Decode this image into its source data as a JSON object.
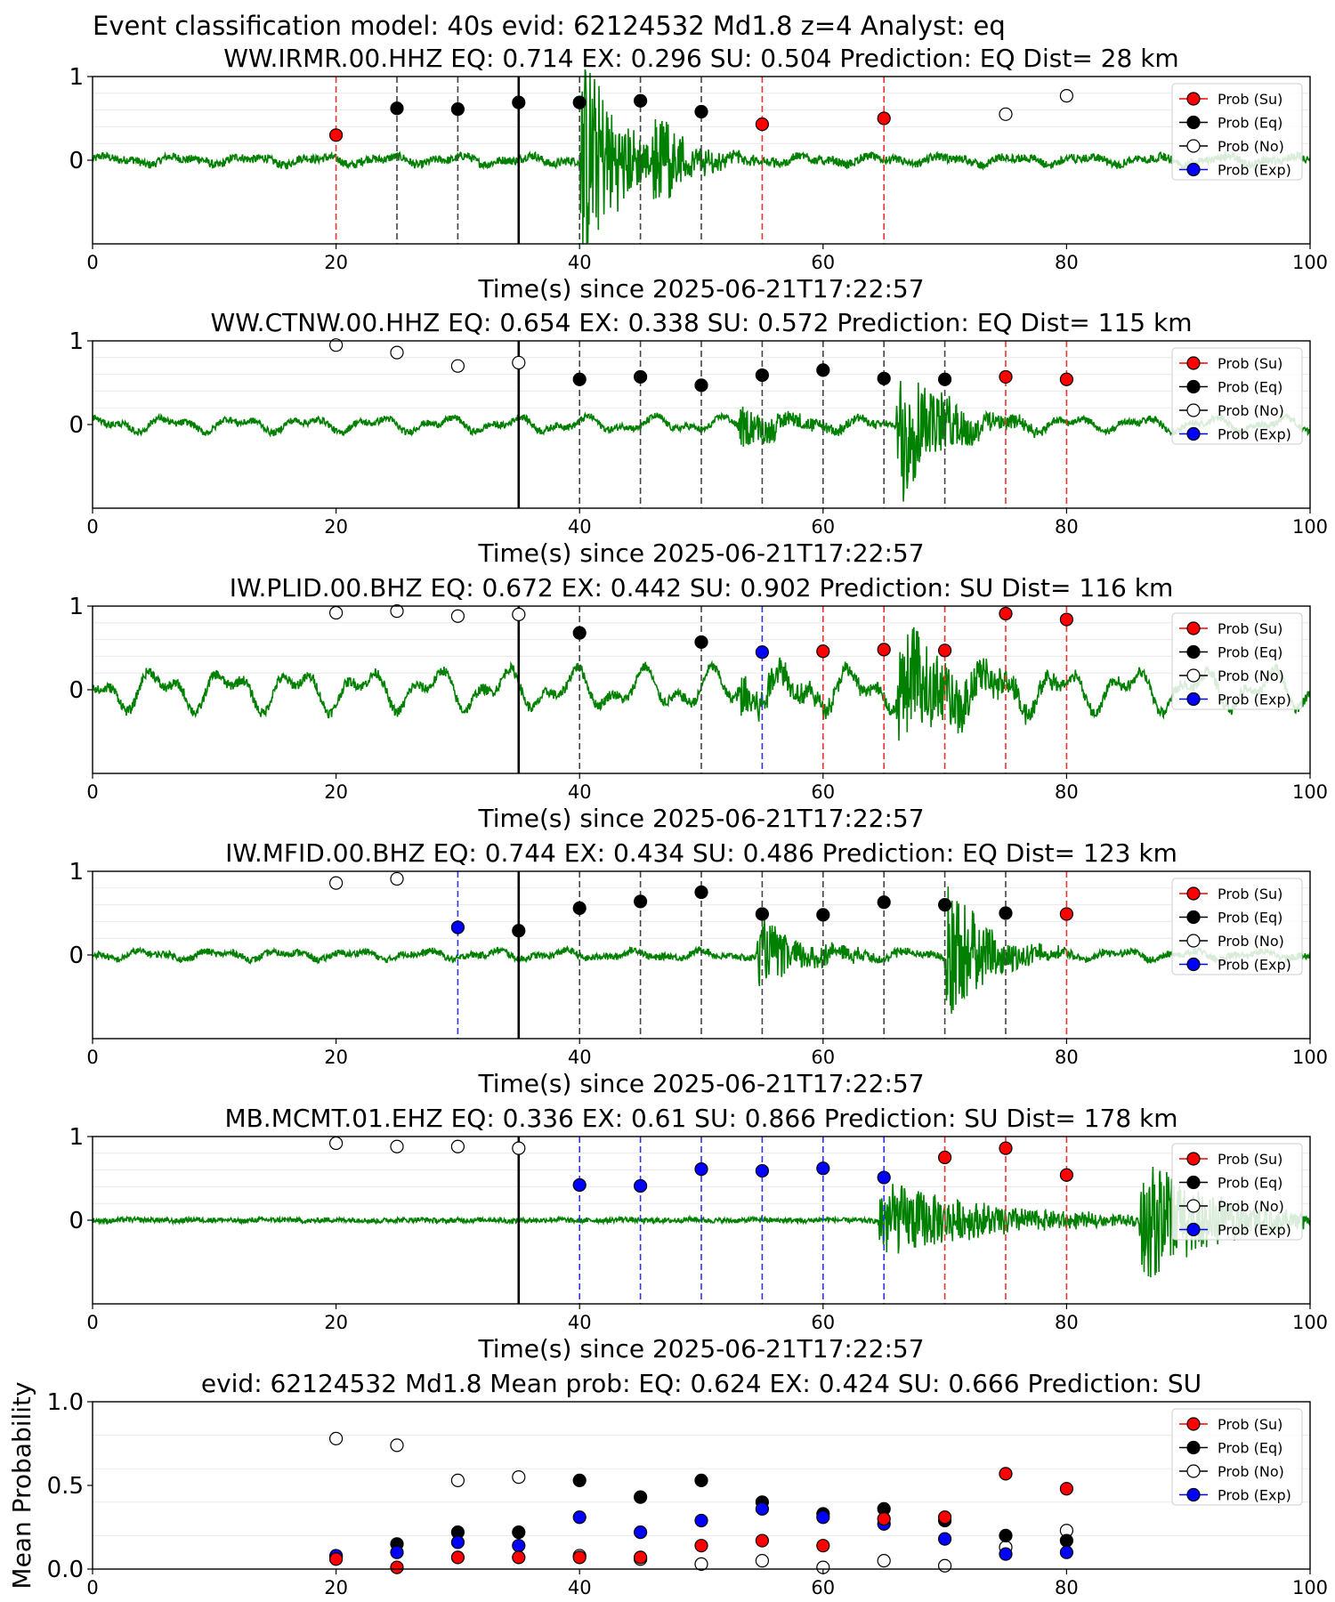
{
  "figure_title": "Event classification model: 40s evid: 62124532 Md1.8 z=4 Analyst: eq",
  "colors": {
    "su": "#ff0000",
    "eq": "#000000",
    "no": "#ffffff",
    "exp": "#0000ff",
    "waveform": "#008000",
    "vline_eq": "#444444",
    "vline_su": "#ee3333",
    "vline_exp": "#3333ee",
    "origin_line": "#000000"
  },
  "legend": [
    "Prob (Su)",
    "Prob (Eq)",
    "Prob (No)",
    "Prob (Exp)"
  ],
  "chart_data": [
    {
      "type": "scatter",
      "title": "WW.IRMR.00.HHZ   EQ: 0.714  EX: 0.296  SU: 0.504   Prediction: EQ    Dist= 28 km",
      "xlabel": "Time(s) since 2025-06-21T17:22:57",
      "xlim": [
        0,
        100
      ],
      "xticks": [
        "0",
        "20",
        "40",
        "60",
        "80",
        "100"
      ],
      "yticks": [
        "1",
        "0"
      ],
      "origin_time": 35,
      "waveform": {
        "bursts": [
          {
            "t": 40,
            "amp": 1.5,
            "dur": 7
          },
          {
            "t": 46,
            "amp": 0.6,
            "dur": 6
          }
        ],
        "noise": 0.05,
        "wave": 0.06
      },
      "points": [
        {
          "x": 20,
          "y": 0.3,
          "cls": "su"
        },
        {
          "x": 25,
          "y": 0.62,
          "cls": "eq"
        },
        {
          "x": 30,
          "y": 0.61,
          "cls": "eq"
        },
        {
          "x": 35,
          "y": 0.69,
          "cls": "eq"
        },
        {
          "x": 40,
          "y": 0.69,
          "cls": "eq"
        },
        {
          "x": 45,
          "y": 0.71,
          "cls": "eq"
        },
        {
          "x": 50,
          "y": 0.58,
          "cls": "eq"
        },
        {
          "x": 55,
          "y": 0.43,
          "cls": "su"
        },
        {
          "x": 65,
          "y": 0.5,
          "cls": "su"
        },
        {
          "x": 75,
          "y": 0.55,
          "cls": "no"
        },
        {
          "x": 80,
          "y": 0.77,
          "cls": "no"
        }
      ]
    },
    {
      "type": "scatter",
      "title": "WW.CTNW.00.HHZ   EQ: 0.654  EX: 0.338  SU: 0.572   Prediction: EQ    Dist= 115 km",
      "xlabel": "Time(s) since 2025-06-21T17:22:57",
      "xlim": [
        0,
        100
      ],
      "xticks": [
        "0",
        "20",
        "40",
        "60",
        "80",
        "100"
      ],
      "yticks": [
        "1",
        "0"
      ],
      "origin_time": 35,
      "waveform": {
        "bursts": [
          {
            "t": 53,
            "amp": 0.25,
            "dur": 10
          },
          {
            "t": 66,
            "amp": 1.0,
            "dur": 8
          }
        ],
        "noise": 0.04,
        "wave": 0.1
      },
      "points": [
        {
          "x": 20,
          "y": 0.95,
          "cls": "no"
        },
        {
          "x": 25,
          "y": 0.86,
          "cls": "no"
        },
        {
          "x": 30,
          "y": 0.7,
          "cls": "no"
        },
        {
          "x": 35,
          "y": 0.74,
          "cls": "no"
        },
        {
          "x": 40,
          "y": 0.54,
          "cls": "eq"
        },
        {
          "x": 45,
          "y": 0.57,
          "cls": "eq"
        },
        {
          "x": 50,
          "y": 0.47,
          "cls": "eq"
        },
        {
          "x": 55,
          "y": 0.59,
          "cls": "eq"
        },
        {
          "x": 60,
          "y": 0.65,
          "cls": "eq"
        },
        {
          "x": 65,
          "y": 0.55,
          "cls": "eq"
        },
        {
          "x": 70,
          "y": 0.54,
          "cls": "eq"
        },
        {
          "x": 75,
          "y": 0.57,
          "cls": "su"
        },
        {
          "x": 80,
          "y": 0.54,
          "cls": "su"
        }
      ]
    },
    {
      "type": "scatter",
      "title": "IW.PLID.00.BHZ   EQ: 0.672  EX: 0.442  SU: 0.902   Prediction: SU    Dist= 116 km",
      "xlabel": "Time(s) since 2025-06-21T17:22:57",
      "xlim": [
        0,
        100
      ],
      "xticks": [
        "0",
        "20",
        "40",
        "60",
        "80",
        "100"
      ],
      "yticks": [
        "1",
        "0"
      ],
      "origin_time": 35,
      "waveform": {
        "bursts": [
          {
            "t": 53,
            "amp": 0.3,
            "dur": 12
          },
          {
            "t": 66,
            "amp": 0.8,
            "dur": 12
          }
        ],
        "noise": 0.06,
        "wave": 0.28
      },
      "points": [
        {
          "x": 20,
          "y": 0.92,
          "cls": "no"
        },
        {
          "x": 25,
          "y": 0.94,
          "cls": "no"
        },
        {
          "x": 30,
          "y": 0.88,
          "cls": "no"
        },
        {
          "x": 35,
          "y": 0.9,
          "cls": "no"
        },
        {
          "x": 40,
          "y": 0.68,
          "cls": "eq"
        },
        {
          "x": 50,
          "y": 0.57,
          "cls": "eq"
        },
        {
          "x": 55,
          "y": 0.45,
          "cls": "exp"
        },
        {
          "x": 60,
          "y": 0.46,
          "cls": "su"
        },
        {
          "x": 65,
          "y": 0.48,
          "cls": "su"
        },
        {
          "x": 70,
          "y": 0.47,
          "cls": "su"
        },
        {
          "x": 75,
          "y": 0.91,
          "cls": "su"
        },
        {
          "x": 80,
          "y": 0.84,
          "cls": "su"
        }
      ]
    },
    {
      "type": "scatter",
      "title": "IW.MFID.00.BHZ   EQ: 0.744  EX: 0.434  SU: 0.486   Prediction: EQ    Dist= 123 km",
      "xlabel": "Time(s) since 2025-06-21T17:22:57",
      "xlim": [
        0,
        100
      ],
      "xticks": [
        "0",
        "20",
        "40",
        "60",
        "80",
        "100"
      ],
      "yticks": [
        "1",
        "0"
      ],
      "origin_time": 35,
      "waveform": {
        "bursts": [
          {
            "t": 54.5,
            "amp": 0.4,
            "dur": 10
          },
          {
            "t": 70,
            "amp": 1.0,
            "dur": 7
          }
        ],
        "noise": 0.04,
        "wave": 0.06
      },
      "points": [
        {
          "x": 20,
          "y": 0.86,
          "cls": "no"
        },
        {
          "x": 25,
          "y": 0.91,
          "cls": "no"
        },
        {
          "x": 30,
          "y": 0.33,
          "cls": "exp"
        },
        {
          "x": 35,
          "y": 0.29,
          "cls": "eq"
        },
        {
          "x": 40,
          "y": 0.56,
          "cls": "eq"
        },
        {
          "x": 45,
          "y": 0.64,
          "cls": "eq"
        },
        {
          "x": 50,
          "y": 0.75,
          "cls": "eq"
        },
        {
          "x": 55,
          "y": 0.49,
          "cls": "eq"
        },
        {
          "x": 60,
          "y": 0.48,
          "cls": "eq"
        },
        {
          "x": 65,
          "y": 0.63,
          "cls": "eq"
        },
        {
          "x": 70,
          "y": 0.6,
          "cls": "eq"
        },
        {
          "x": 75,
          "y": 0.5,
          "cls": "eq"
        },
        {
          "x": 80,
          "y": 0.49,
          "cls": "su"
        }
      ]
    },
    {
      "type": "scatter",
      "title": "MB.MCMT.01.EHZ   EQ: 0.336  EX: 0.61  SU: 0.866   Prediction: SU    Dist= 178 km",
      "xlabel": "Time(s) since 2025-06-21T17:22:57",
      "xlim": [
        0,
        100
      ],
      "xticks": [
        "0",
        "20",
        "40",
        "60",
        "80",
        "100"
      ],
      "yticks": [
        "1",
        "0"
      ],
      "origin_time": 35,
      "waveform": {
        "bursts": [
          {
            "t": 64.5,
            "amp": 0.5,
            "dur": 20
          },
          {
            "t": 86,
            "amp": 0.8,
            "dur": 14
          }
        ],
        "noise": 0.03,
        "wave": 0.01
      },
      "points": [
        {
          "x": 20,
          "y": 0.92,
          "cls": "no"
        },
        {
          "x": 25,
          "y": 0.88,
          "cls": "no"
        },
        {
          "x": 30,
          "y": 0.88,
          "cls": "no"
        },
        {
          "x": 35,
          "y": 0.86,
          "cls": "no"
        },
        {
          "x": 40,
          "y": 0.42,
          "cls": "exp"
        },
        {
          "x": 45,
          "y": 0.41,
          "cls": "exp"
        },
        {
          "x": 50,
          "y": 0.61,
          "cls": "exp"
        },
        {
          "x": 55,
          "y": 0.59,
          "cls": "exp"
        },
        {
          "x": 60,
          "y": 0.62,
          "cls": "exp"
        },
        {
          "x": 65,
          "y": 0.51,
          "cls": "exp"
        },
        {
          "x": 70,
          "y": 0.75,
          "cls": "su"
        },
        {
          "x": 75,
          "y": 0.86,
          "cls": "su"
        },
        {
          "x": 80,
          "y": 0.54,
          "cls": "su"
        }
      ]
    },
    {
      "type": "scatter",
      "title": "evid: 62124532  Md1.8   Mean prob:   EQ: 0.624  EX: 0.424  SU: 0.666   Prediction: SU",
      "ylabel": "Mean Probability",
      "xlim": [
        0,
        100
      ],
      "ylim": [
        0,
        1
      ],
      "xticks": [
        "0",
        "20",
        "40",
        "60",
        "80",
        "100"
      ],
      "yticks": [
        "1.0",
        "0.5",
        "0.0"
      ],
      "x": [
        20,
        25,
        30,
        35,
        40,
        45,
        50,
        55,
        60,
        65,
        70,
        75,
        80
      ],
      "series": [
        {
          "name": "Prob (No)",
          "cls": "no",
          "values": [
            0.78,
            0.74,
            0.53,
            0.55,
            0.08,
            0.06,
            0.03,
            0.05,
            0.01,
            0.05,
            0.02,
            0.13,
            0.23
          ]
        },
        {
          "name": "Prob (Eq)",
          "cls": "eq",
          "values": [
            0.07,
            0.15,
            0.22,
            0.22,
            0.53,
            0.43,
            0.53,
            0.4,
            0.33,
            0.36,
            0.29,
            0.2,
            0.17
          ]
        },
        {
          "name": "Prob (Exp)",
          "cls": "exp",
          "values": [
            0.08,
            0.1,
            0.16,
            0.14,
            0.31,
            0.22,
            0.29,
            0.36,
            0.31,
            0.27,
            0.18,
            0.09,
            0.1
          ]
        },
        {
          "name": "Prob (Su)",
          "cls": "su",
          "values": [
            0.06,
            0.01,
            0.07,
            0.07,
            0.07,
            0.07,
            0.14,
            0.17,
            0.14,
            0.3,
            0.31,
            0.57,
            0.48
          ]
        }
      ]
    }
  ]
}
